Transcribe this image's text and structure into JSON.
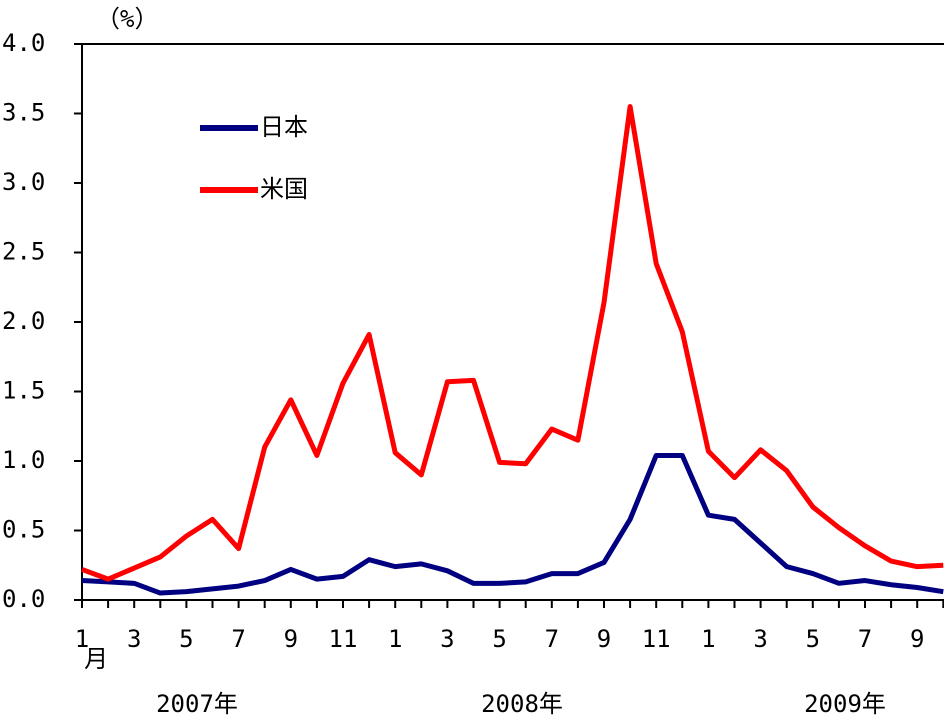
{
  "chart_data": {
    "type": "line",
    "y_axis_label": "（%）",
    "categories": [
      "1",
      null,
      "3",
      null,
      "5",
      null,
      "7",
      null,
      "9",
      null,
      "11",
      null,
      "1",
      null,
      "3",
      null,
      "5",
      null,
      "7",
      null,
      "9",
      null,
      "11",
      null,
      "1",
      null,
      "3",
      null,
      "5",
      null,
      "7",
      null,
      "9",
      null
    ],
    "month_label": "月",
    "year_labels": [
      "2007年",
      "2008年",
      "2009年"
    ],
    "series": [
      {
        "name": "日本",
        "color": "#000080",
        "values": [
          0.14,
          0.13,
          0.12,
          0.05,
          0.06,
          0.08,
          0.1,
          0.14,
          0.22,
          0.15,
          0.17,
          0.29,
          0.24,
          0.26,
          0.21,
          0.12,
          0.12,
          0.13,
          0.19,
          0.19,
          0.27,
          0.58,
          1.04,
          1.04,
          0.61,
          0.58,
          0.41,
          0.24,
          0.19,
          0.12,
          0.14,
          0.11,
          0.09,
          0.06
        ]
      },
      {
        "name": "米国",
        "color": "#ff0000",
        "values": [
          0.22,
          0.15,
          0.23,
          0.31,
          0.46,
          0.58,
          0.37,
          1.1,
          1.44,
          1.04,
          1.56,
          1.91,
          1.06,
          0.9,
          1.57,
          1.58,
          0.99,
          0.98,
          1.23,
          1.15,
          2.14,
          3.55,
          2.42,
          1.93,
          1.07,
          0.88,
          1.08,
          0.93,
          0.67,
          0.52,
          0.39,
          0.28,
          0.24,
          0.25
        ]
      }
    ],
    "ylim": [
      0,
      4
    ],
    "yticks": [
      {
        "value": 0,
        "label": "0.0"
      },
      {
        "value": 0.5,
        "label": "0.5"
      },
      {
        "value": 1,
        "label": "1.0"
      },
      {
        "value": 1.5,
        "label": "1.5"
      },
      {
        "value": 2,
        "label": "2.0"
      },
      {
        "value": 2.5,
        "label": "2.5"
      },
      {
        "value": 3,
        "label": "3.0"
      },
      {
        "value": 3.5,
        "label": "3.5"
      },
      {
        "value": 4,
        "label": "4.0"
      }
    ],
    "legend": "upper-left"
  }
}
